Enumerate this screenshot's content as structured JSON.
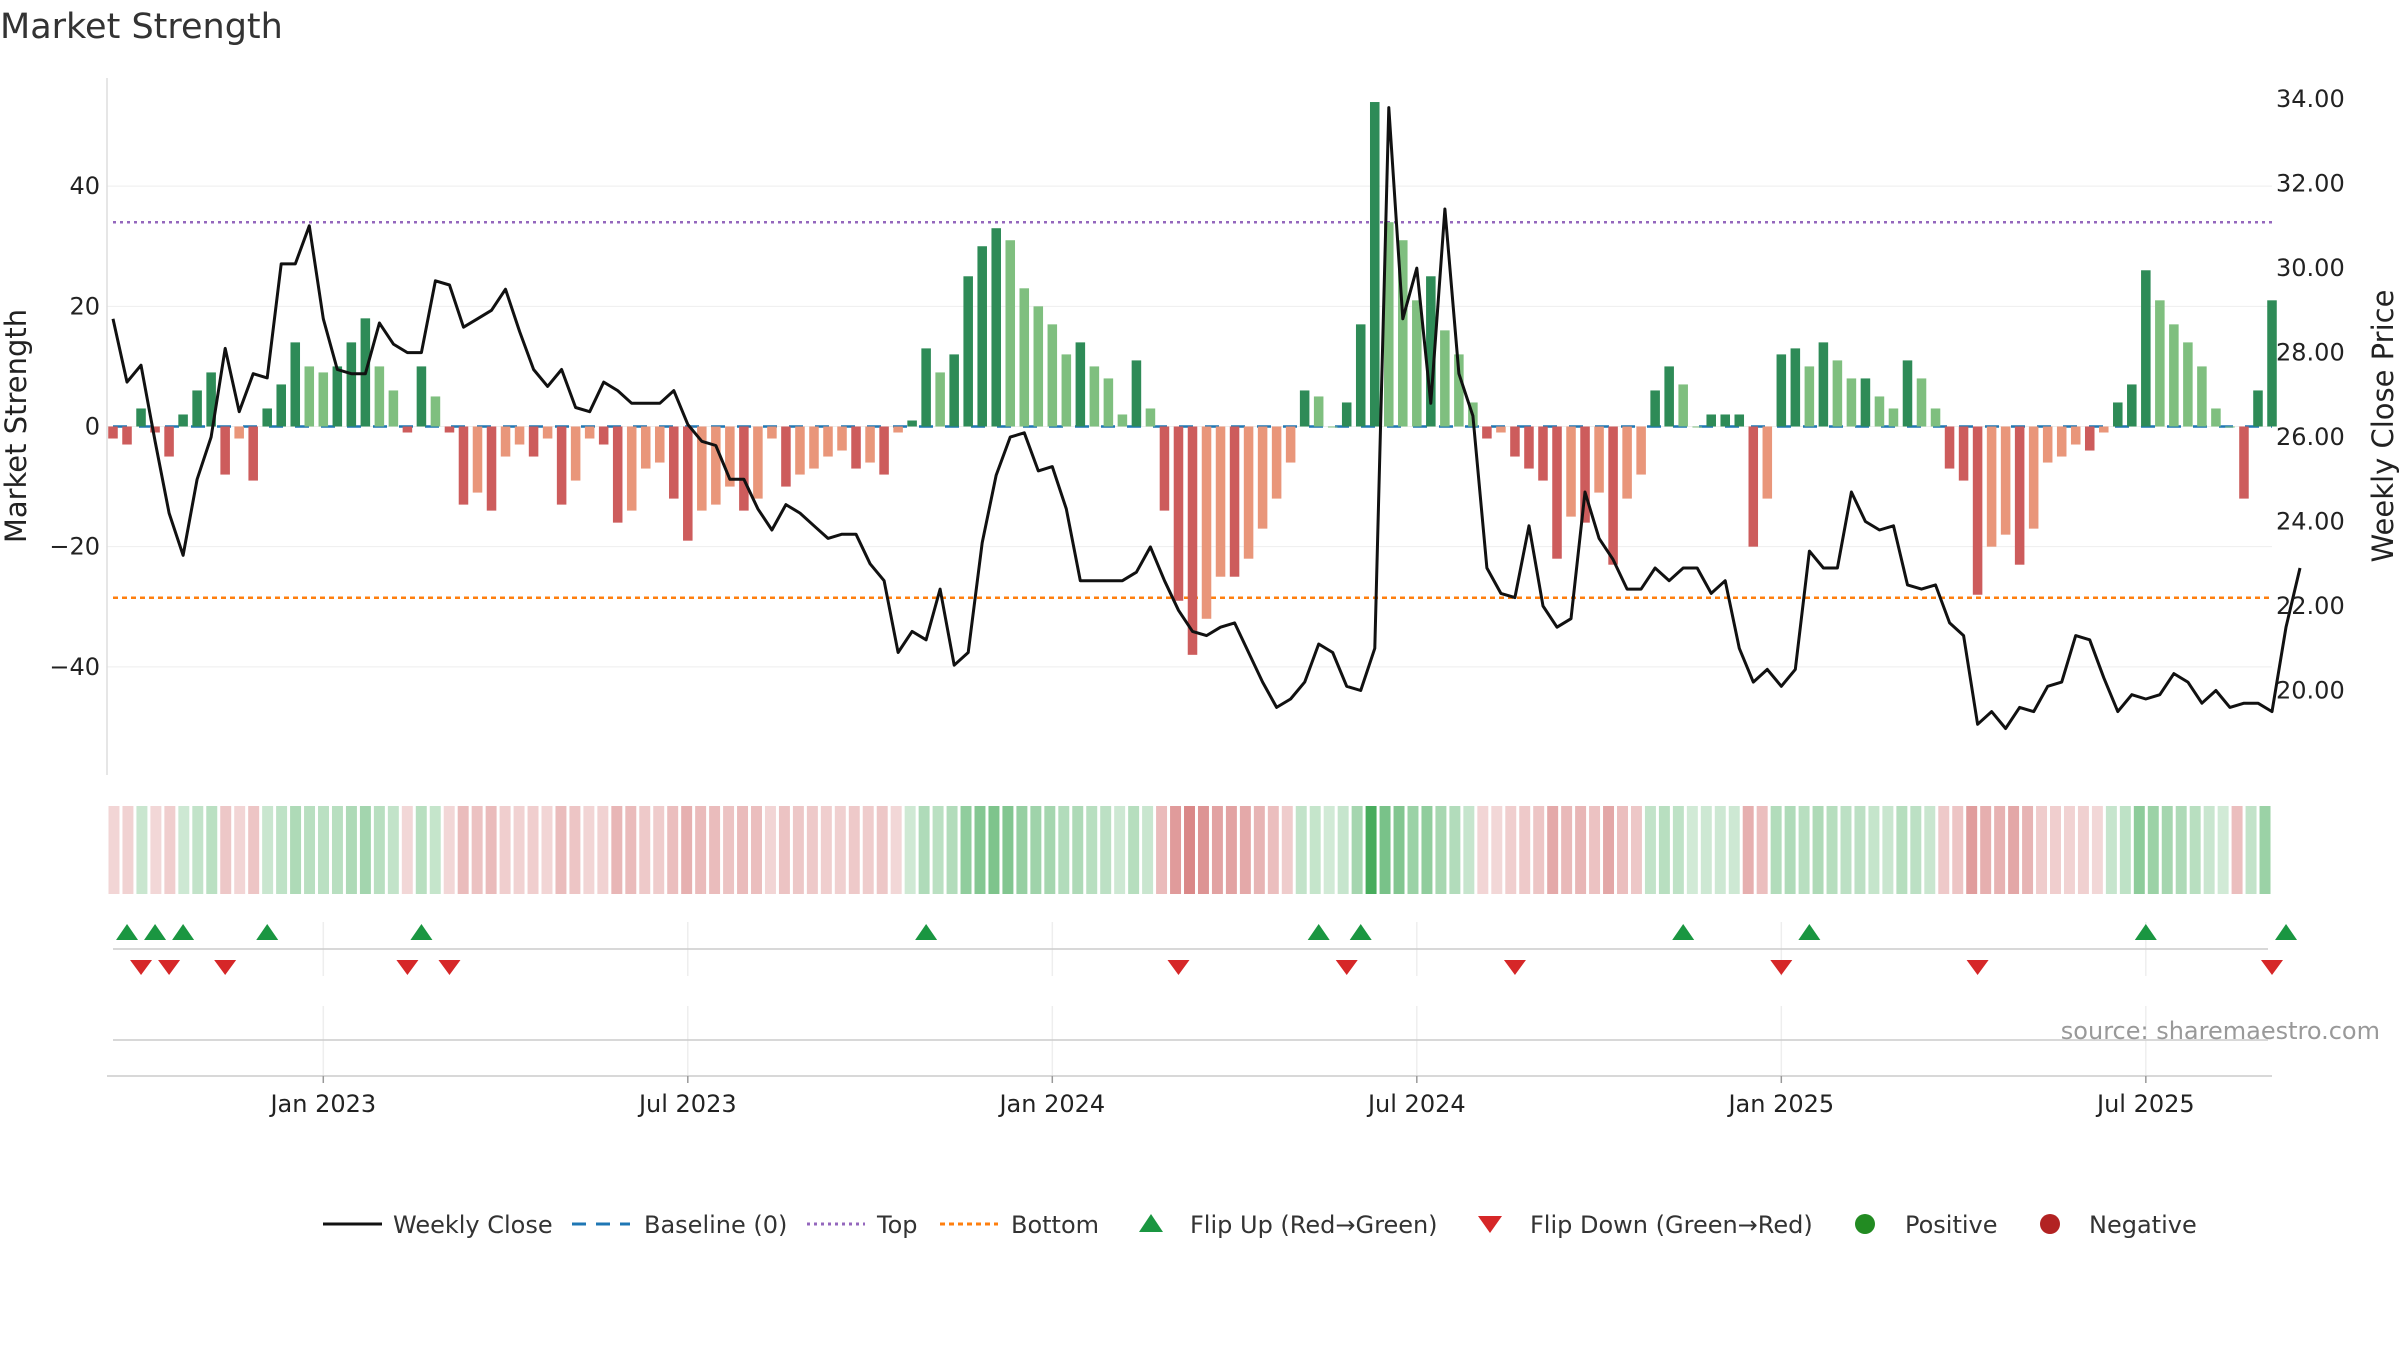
{
  "title": "Market Strength",
  "source_note": "source: sharemaestro.com",
  "colors": {
    "strong_green": "#2e8b57",
    "light_green": "#7fbf7f",
    "strong_red": "#cd5c5c",
    "light_red": "#e9967a",
    "close_line": "#111111",
    "baseline": "#1f77b4",
    "top": "#9467bd",
    "bottom": "#ff7f0e",
    "flip_up": "#1a9641",
    "flip_down": "#d62728",
    "positive": "#228b22",
    "negative": "#b22222"
  },
  "chart_data": {
    "type": "bar",
    "title": "Market Strength",
    "ylabel": "Market Strength",
    "ylabel_right": "Weekly Close Price",
    "ylim": [
      -58,
      58
    ],
    "ylim_right": [
      18.0,
      34.5
    ],
    "yticks": [
      40,
      20,
      0,
      -20,
      -40
    ],
    "yticks_right": [
      34,
      32,
      30,
      28,
      26,
      24,
      22,
      20
    ],
    "y_tick_labels": [
      "40",
      "20",
      "0",
      "−20",
      "−40"
    ],
    "y_right_tick_labels": [
      "34.00",
      "32.00",
      "30.00",
      "28.00",
      "26.00",
      "24.00",
      "22.00",
      "20.00"
    ],
    "x_tick_labels": [
      "Jan 2023",
      "Jul 2023",
      "Jan 2024",
      "Jul 2024",
      "Jan 2025",
      "Jul 2025"
    ],
    "x_tick_weeks": [
      15,
      41,
      67,
      93,
      119,
      145
    ],
    "top_level": 34,
    "bottom_level": -28.5,
    "baseline": 0,
    "legend": [
      "Weekly Close",
      "Baseline (0)",
      "Top",
      "Bottom",
      "Flip Up (Red→Green)",
      "Flip Down (Green→Red)",
      "Positive",
      "Negative"
    ],
    "strength": [
      -2,
      -3,
      3,
      -1,
      -5,
      2,
      6,
      9,
      -8,
      -2,
      -9,
      3,
      7,
      14,
      10,
      9,
      10,
      14,
      18,
      10,
      6,
      -1,
      10,
      5,
      -1,
      -13,
      -11,
      -14,
      -5,
      -3,
      -5,
      -2,
      -13,
      -9,
      -2,
      -3,
      -16,
      -14,
      -7,
      -6,
      -12,
      -19,
      -14,
      -13,
      -10,
      -14,
      -12,
      -2,
      -10,
      -8,
      -7,
      -5,
      -4,
      -7,
      -6,
      -8,
      -1,
      1,
      13,
      9,
      12,
      25,
      30,
      33,
      31,
      23,
      20,
      17,
      12,
      14,
      10,
      8,
      2,
      11,
      3,
      -14,
      -29,
      -38,
      -32,
      -25,
      -25,
      -22,
      -17,
      -12,
      -6,
      6,
      5,
      0,
      4,
      17,
      54,
      34,
      31,
      21,
      25,
      16,
      12,
      4,
      -2,
      -1,
      -5,
      -7,
      -9,
      -22,
      -15,
      -16,
      -11,
      -23,
      -12,
      -8,
      6,
      10,
      7,
      0,
      2,
      2,
      2,
      -20,
      -12,
      12,
      13,
      10,
      14,
      11,
      8,
      8,
      5,
      3,
      11,
      8,
      3,
      -7,
      -9,
      -28,
      -20,
      -18,
      -23,
      -17,
      -6,
      -5,
      -3,
      -4,
      -1,
      4,
      7,
      26,
      21,
      17,
      14,
      10,
      3,
      0,
      -12,
      6,
      21
    ],
    "close": [
      28.8,
      27.3,
      27.7,
      25.9,
      24.2,
      23.2,
      25.0,
      26.0,
      28.1,
      26.6,
      27.5,
      27.4,
      30.1,
      30.1,
      31.0,
      28.8,
      27.6,
      27.5,
      27.5,
      28.7,
      28.2,
      28.0,
      28.0,
      29.7,
      29.6,
      28.6,
      28.8,
      29.0,
      29.5,
      28.5,
      27.6,
      27.2,
      27.6,
      26.7,
      26.6,
      27.3,
      27.1,
      26.8,
      26.8,
      26.8,
      27.1,
      26.3,
      25.9,
      25.8,
      25.0,
      25.0,
      24.3,
      23.8,
      24.4,
      24.2,
      23.9,
      23.6,
      23.7,
      23.7,
      23.0,
      22.6,
      20.9,
      21.4,
      21.2,
      22.4,
      20.6,
      20.9,
      23.5,
      25.1,
      26.0,
      26.1,
      25.2,
      25.3,
      24.3,
      22.6,
      22.6,
      22.6,
      22.6,
      22.8,
      23.4,
      22.6,
      21.9,
      21.4,
      21.3,
      21.5,
      21.6,
      20.9,
      20.2,
      19.6,
      19.8,
      20.2,
      21.1,
      20.9,
      20.1,
      20.0,
      21.0,
      33.8,
      28.8,
      30.0,
      26.8,
      31.4,
      27.5,
      26.5,
      22.9,
      22.3,
      22.2,
      23.9,
      22.0,
      21.5,
      21.7,
      24.7,
      23.6,
      23.1,
      22.4,
      22.4,
      22.9,
      22.6,
      22.9,
      22.9,
      22.3,
      22.6,
      21.0,
      20.2,
      20.5,
      20.1,
      20.5,
      23.3,
      22.9,
      22.9,
      24.7,
      24.0,
      23.8,
      23.9,
      22.5,
      22.4,
      22.5,
      21.6,
      21.3,
      19.2,
      19.5,
      19.1,
      19.6,
      19.5,
      20.1,
      20.2,
      21.3,
      21.2,
      20.3,
      19.5,
      19.9,
      19.8,
      19.9,
      20.4,
      20.2,
      19.7,
      20.0,
      19.6,
      19.7,
      19.7,
      19.5,
      21.5,
      22.9
    ],
    "flip_up_weeks": [
      1,
      3,
      5,
      11,
      22,
      58,
      86,
      89,
      112,
      121,
      145,
      155
    ],
    "flip_down_weeks": [
      2,
      4,
      8,
      21,
      24,
      76,
      88,
      100,
      119,
      133,
      154
    ]
  }
}
